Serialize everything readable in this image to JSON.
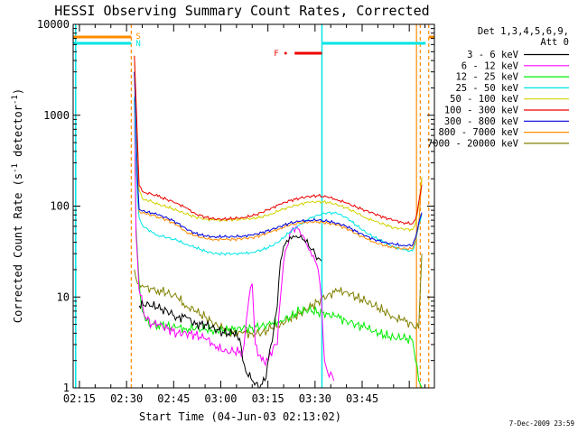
{
  "chart_data": {
    "type": "line",
    "title": "HESSI Observing Summary Count Rates, Corrected",
    "xlabel": "Start Time (04-Jun-03 02:13:02)",
    "ylabel_main": "Corrected Count Rate (s",
    "ylabel_sup1": "-1",
    "ylabel_mid": " detector",
    "ylabel_sup2": "-1",
    "ylabel_end": ")",
    "yscale": "log",
    "ylim": [
      1,
      10000
    ],
    "xlim_min": [
      133,
      248
    ],
    "x_ticks": [
      {
        "min": 135,
        "label": "02:15"
      },
      {
        "min": 150,
        "label": "02:30"
      },
      {
        "min": 165,
        "label": "02:45"
      },
      {
        "min": 180,
        "label": "03:00"
      },
      {
        "min": 195,
        "label": "03:15"
      },
      {
        "min": 210,
        "label": "03:30"
      },
      {
        "min": 225,
        "label": "03:45"
      }
    ],
    "y_ticks": [
      {
        "v": 1,
        "label": "1"
      },
      {
        "v": 10,
        "label": "10"
      },
      {
        "v": 100,
        "label": "100"
      },
      {
        "v": 1000,
        "label": "1000"
      },
      {
        "v": 10000,
        "label": "10000"
      }
    ],
    "legend": {
      "header1": "Det 1,3,4,5,6,9,",
      "header2": "Att 0",
      "entries": [
        {
          "label": "3 - 6 keV",
          "color": "#000000"
        },
        {
          "label": "6 - 12 keV",
          "color": "#ff00ff"
        },
        {
          "label": "12 - 25 keV",
          "color": "#00ee00"
        },
        {
          "label": "25 - 50 keV",
          "color": "#00e5e5"
        },
        {
          "label": "50 - 100 keV",
          "color": "#d2d200"
        },
        {
          "label": "100 - 300 keV",
          "color": "#ee0000"
        },
        {
          "label": "300 - 800 keV",
          "color": "#0000dd"
        },
        {
          "label": "800 - 7000 keV",
          "color": "#ff8c00"
        },
        {
          "label": "7000 - 20000 keV",
          "color": "#808000"
        }
      ]
    },
    "flags": {
      "saa_label": "S",
      "night_label": "N",
      "flare_label": "F",
      "saa_color": "#ff8c00",
      "night_color": "#00e5e5",
      "flare_color": "#ee0000",
      "saa_intervals": [
        [
          133,
          151.5
        ],
        [
          246.2,
          248
        ]
      ],
      "night_intervals": [
        [
          133,
          151.5
        ],
        [
          212.2,
          245.2
        ]
      ],
      "flare_interval": [
        203.5,
        212.2
      ],
      "vlines_orange_dashed": [
        151.5,
        243.5,
        246.2
      ],
      "vlines_cyan_solid": [
        133.8,
        212.2
      ],
      "vlines_orange_solid": [
        242.3
      ]
    },
    "series": [
      {
        "name": "3 - 6 keV",
        "color": "#000000",
        "x": [
          154,
          157,
          160,
          163,
          166,
          169,
          172,
          175,
          178,
          181,
          184,
          186,
          187,
          188,
          190,
          192,
          194,
          196,
          198,
          199,
          200,
          201,
          202,
          203,
          204,
          205,
          206,
          207,
          208,
          209,
          210,
          211,
          212
        ],
        "y": [
          8,
          8.5,
          7.5,
          7,
          6,
          6,
          5,
          5,
          4.5,
          4,
          4,
          3.5,
          2,
          1.5,
          1.2,
          1,
          1.2,
          3,
          8,
          25,
          36,
          42,
          46,
          47,
          47,
          45,
          43,
          40,
          36,
          33,
          30,
          27,
          25
        ]
      },
      {
        "name": "6 - 12 keV",
        "color": "#ff00ff",
        "x": [
          152.5,
          153,
          154,
          156,
          158,
          160,
          163,
          166,
          169,
          172,
          175,
          178,
          181,
          184,
          187,
          189,
          190,
          191,
          193,
          195,
          197,
          198,
          199,
          200,
          201,
          202,
          203,
          204,
          205,
          206,
          207,
          208,
          209,
          210,
          211,
          212,
          213,
          214,
          215,
          216
        ],
        "y": [
          1500,
          50,
          12,
          6,
          5,
          5,
          4.5,
          4,
          4,
          3.8,
          3.5,
          3,
          2.5,
          2.5,
          2.5,
          10,
          14,
          3,
          2,
          2,
          3,
          3,
          10,
          24,
          35,
          50,
          58,
          60,
          55,
          48,
          40,
          33,
          28,
          25,
          20,
          10,
          2,
          1.5,
          1.5,
          1.2
        ]
      },
      {
        "name": "12 - 25 keV",
        "color": "#00ee00",
        "x": [
          152.5,
          153,
          154,
          155,
          156,
          158,
          160,
          163,
          166,
          169,
          172,
          175,
          178,
          181,
          184,
          187,
          190,
          193,
          196,
          199,
          202,
          205,
          208,
          211,
          214,
          217,
          220,
          223,
          226,
          229,
          232,
          235,
          238,
          241,
          242,
          243,
          244
        ],
        "y": [
          1500,
          60,
          15,
          7,
          5.5,
          5,
          5,
          4.8,
          4.6,
          4.5,
          4.5,
          4.4,
          4.3,
          4.3,
          4.4,
          4.5,
          4.6,
          4.8,
          5,
          5.5,
          6,
          7,
          7.2,
          6.8,
          6.5,
          6,
          5.5,
          5,
          4.6,
          4.2,
          3.8,
          3.6,
          3.5,
          3.4,
          2,
          1.2,
          1
        ]
      },
      {
        "name": "25 - 50 keV",
        "color": "#00e5e5",
        "x": [
          152.5,
          153,
          153.5,
          154,
          155,
          156,
          158,
          160,
          163,
          166,
          169,
          172,
          175,
          178,
          181,
          184,
          187,
          190,
          193,
          196,
          199,
          202,
          205,
          208,
          211,
          214,
          217,
          220,
          223,
          226,
          229,
          232,
          235,
          238,
          241,
          242,
          243,
          244
        ],
        "y": [
          1600,
          300,
          120,
          75,
          62,
          58,
          52,
          48,
          45,
          42,
          38,
          35,
          32,
          30,
          30,
          30,
          30,
          31,
          33,
          36,
          42,
          52,
          62,
          72,
          80,
          85,
          83,
          75,
          62,
          52,
          45,
          40,
          36,
          33,
          32,
          40,
          60,
          80
        ]
      },
      {
        "name": "50 - 100 keV",
        "color": "#d2d200",
        "x": [
          152.5,
          153,
          153.5,
          154,
          155,
          156,
          158,
          160,
          163,
          166,
          169,
          172,
          175,
          178,
          181,
          184,
          187,
          190,
          193,
          196,
          199,
          202,
          205,
          208,
          211,
          214,
          217,
          220,
          223,
          226,
          229,
          232,
          235,
          238,
          241,
          242,
          243,
          244
        ],
        "y": [
          4500,
          1500,
          400,
          150,
          122,
          118,
          112,
          105,
          98,
          90,
          82,
          76,
          72,
          70,
          70,
          71,
          72,
          73,
          76,
          82,
          90,
          98,
          105,
          110,
          112,
          110,
          104,
          95,
          85,
          75,
          68,
          63,
          58,
          56,
          55,
          65,
          100,
          210
        ]
      },
      {
        "name": "100 - 300 keV",
        "color": "#ee0000",
        "x": [
          152.5,
          153,
          153.5,
          154,
          155,
          156,
          158,
          160,
          163,
          166,
          169,
          172,
          175,
          178,
          181,
          184,
          187,
          190,
          193,
          196,
          199,
          202,
          205,
          208,
          211,
          214,
          217,
          220,
          223,
          226,
          229,
          232,
          235,
          238,
          241,
          242,
          243,
          244
        ],
        "y": [
          4500,
          1500,
          500,
          170,
          145,
          140,
          135,
          128,
          118,
          108,
          95,
          82,
          76,
          72,
          72,
          73,
          75,
          78,
          85,
          95,
          105,
          115,
          122,
          128,
          130,
          126,
          118,
          108,
          98,
          90,
          82,
          75,
          70,
          66,
          64,
          72,
          110,
          170
        ]
      },
      {
        "name": "300 - 800 keV",
        "color": "#0000dd",
        "x": [
          152.5,
          153,
          153.5,
          154,
          155,
          156,
          158,
          160,
          163,
          166,
          169,
          172,
          175,
          178,
          181,
          184,
          187,
          190,
          193,
          196,
          199,
          202,
          205,
          208,
          211,
          214,
          217,
          220,
          223,
          226,
          229,
          232,
          235,
          238,
          241,
          242,
          243,
          244
        ],
        "y": [
          3000,
          800,
          200,
          92,
          88,
          86,
          84,
          80,
          74,
          66,
          56,
          50,
          47,
          46,
          46,
          46,
          47,
          48,
          51,
          55,
          60,
          65,
          68,
          70,
          70,
          68,
          65,
          60,
          53,
          47,
          43,
          40,
          38,
          37,
          37,
          45,
          65,
          85
        ]
      },
      {
        "name": "800 - 7000 keV",
        "color": "#ff8c00",
        "x": [
          152.5,
          153,
          153.5,
          154,
          155,
          156,
          158,
          160,
          163,
          166,
          169,
          172,
          175,
          178,
          181,
          184,
          187,
          190,
          193,
          196,
          199,
          202,
          205,
          208,
          211,
          214,
          217,
          220,
          223,
          226,
          229,
          232,
          235,
          238,
          241,
          242,
          243,
          244
        ],
        "y": [
          3000,
          800,
          200,
          88,
          84,
          82,
          80,
          76,
          70,
          62,
          52,
          47,
          44,
          43,
          43,
          43,
          44,
          45,
          48,
          52,
          57,
          62,
          65,
          67,
          67,
          65,
          62,
          57,
          50,
          44,
          40,
          37,
          35,
          34,
          34,
          42,
          62,
          200
        ]
      },
      {
        "name": "7000 - 20000 keV",
        "color": "#808000",
        "x": [
          152.5,
          153,
          153.5,
          154,
          155,
          156,
          158,
          160,
          163,
          166,
          169,
          172,
          175,
          178,
          181,
          184,
          187,
          190,
          193,
          196,
          199,
          202,
          205,
          208,
          211,
          214,
          217,
          220,
          223,
          226,
          229,
          232,
          235,
          238,
          241,
          242,
          243,
          244
        ],
        "y": [
          20,
          16,
          14,
          14,
          13.5,
          13,
          12.5,
          12,
          11,
          10,
          8,
          7,
          6,
          5,
          4.5,
          4,
          4,
          4,
          4,
          4.5,
          5,
          5.8,
          6.5,
          7.5,
          9,
          10.5,
          11.5,
          11.5,
          10,
          9,
          8,
          7,
          6,
          5.5,
          5,
          4.5,
          4.5,
          30
        ]
      }
    ],
    "footer_stamp": "7-Dec-2009 23:59"
  }
}
